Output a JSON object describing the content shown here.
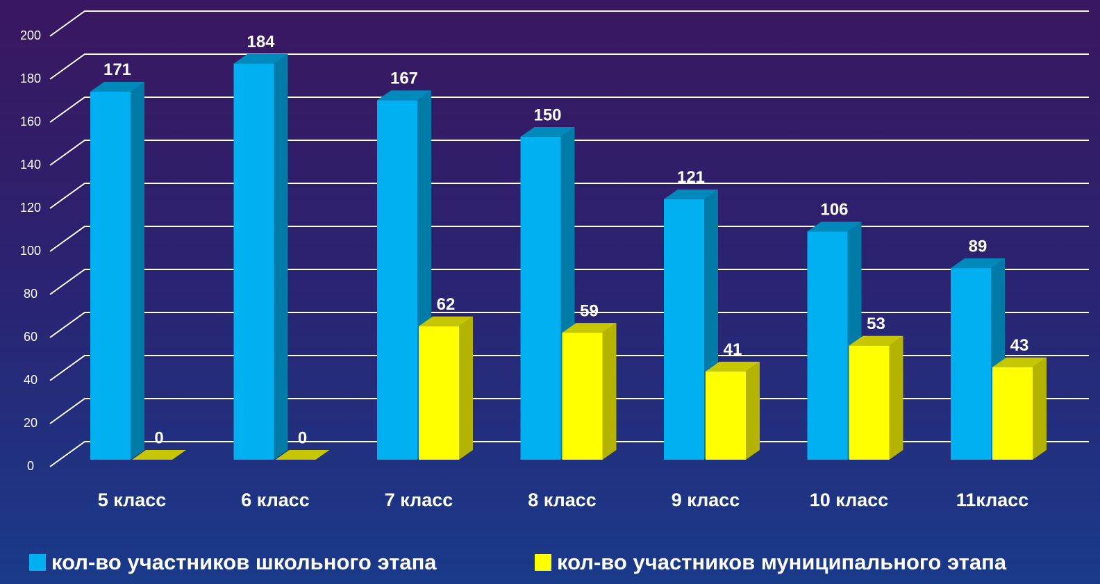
{
  "chart_data": {
    "type": "bar3d",
    "categories": [
      "5 класс",
      "6 класс",
      "7 класс",
      "8 класс",
      "9 класс",
      "10 класс",
      "11класс"
    ],
    "series": [
      {
        "name": "кол-во участников школьного этапа",
        "color": "#00b0f0",
        "values": [
          171,
          184,
          167,
          150,
          121,
          106,
          89
        ]
      },
      {
        "name": "кол-во участников муниципального этапа",
        "color": "#ffff00",
        "values": [
          0,
          0,
          62,
          59,
          41,
          53,
          43
        ]
      }
    ],
    "ylim": [
      0,
      200
    ],
    "yticks": [
      0,
      20,
      40,
      60,
      80,
      100,
      120,
      140,
      160,
      180,
      200
    ],
    "grid": true,
    "legend": "bottom"
  }
}
